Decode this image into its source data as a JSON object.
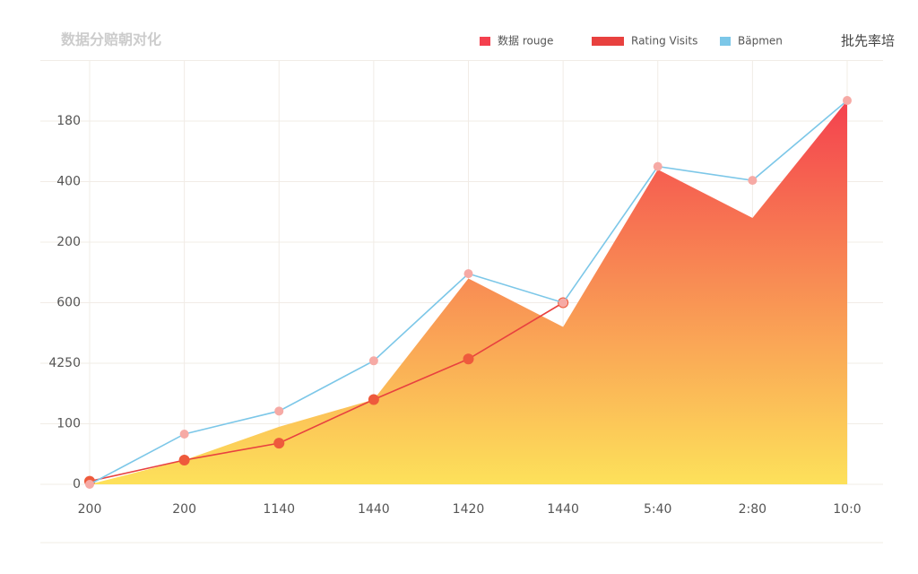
{
  "chart_data": {
    "type": "area_line",
    "title": "数据分赔朝对化",
    "categories": [
      "200",
      "200",
      "1140",
      "1440",
      "1420",
      "1440",
      "5:40",
      "2:80",
      "10:0"
    ],
    "y_axis_labels": [
      "0",
      "100",
      "4250",
      "600",
      "200",
      "400",
      "180"
    ],
    "ylim": [
      0,
      700
    ],
    "yticks": [
      0,
      100,
      200,
      300,
      400,
      500,
      600,
      700
    ],
    "grid": true,
    "legend": "top-right",
    "series": [
      {
        "name": "数据 rouge",
        "kind": "area",
        "color": "#f4404e",
        "color2": "#fde15a",
        "values": [
          0,
          40,
          95,
          140,
          340,
          260,
          520,
          440,
          634
        ]
      },
      {
        "name": "Rating Visits",
        "kind": "line",
        "color": "#e8413f",
        "values": [
          5,
          40,
          68,
          140,
          207,
          300,
          null,
          null,
          null
        ]
      },
      {
        "name": "Bäpmen",
        "kind": "line",
        "color": "#7cc7e8",
        "values": [
          0,
          83,
          121,
          204,
          348,
          300,
          525,
          502,
          634
        ]
      }
    ],
    "legend_extra": "批先率培"
  }
}
